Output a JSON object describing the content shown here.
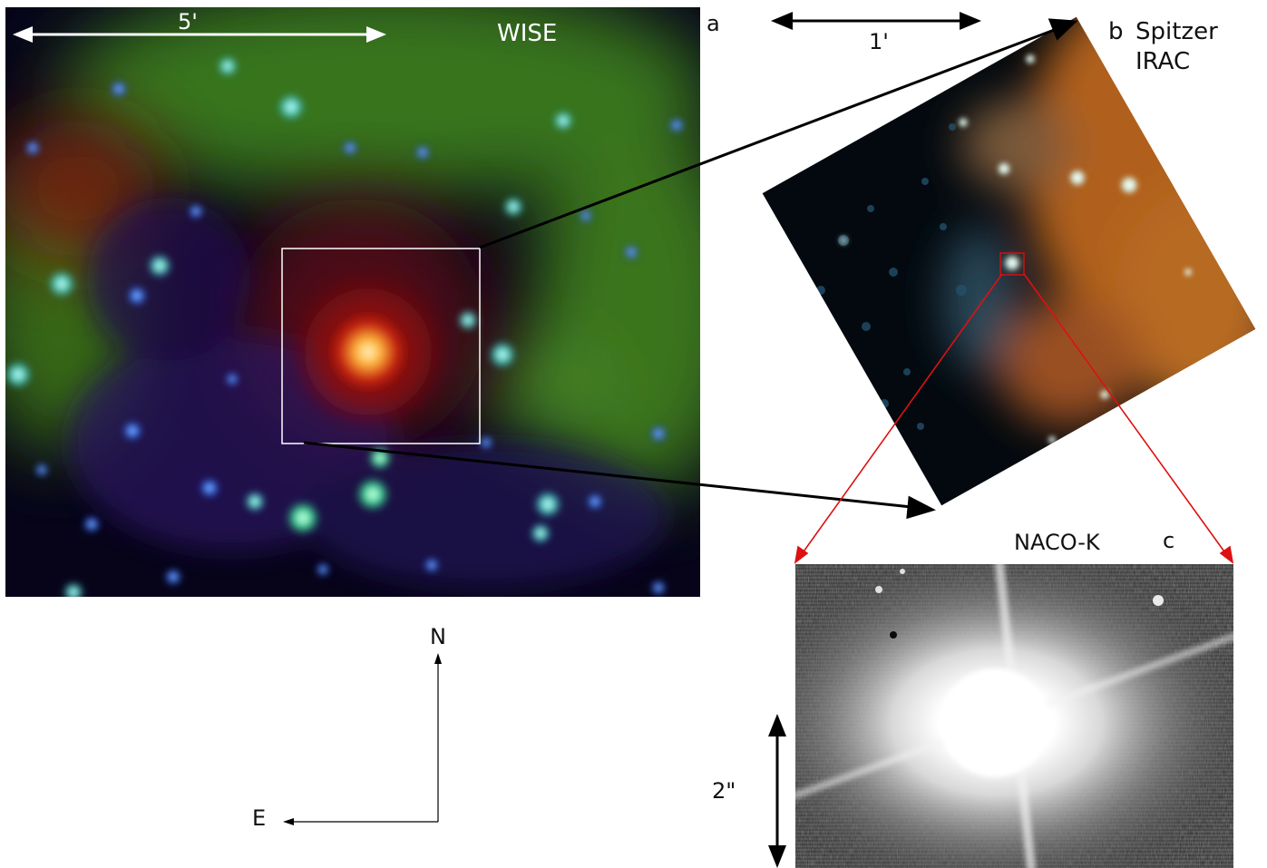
{
  "panel_a": {
    "survey": "WISE",
    "letter": "a",
    "scale_label": "5'"
  },
  "panel_b": {
    "letter": "b",
    "survey_line1": "Spitzer",
    "survey_line2": "IRAC",
    "scale_label": "1'"
  },
  "panel_c": {
    "survey": "NACO-K",
    "letter": "c",
    "scale_label": "2\""
  },
  "compass": {
    "north": "N",
    "east": "E"
  },
  "colors": {
    "zoom_box_a": "#ffffff",
    "zoom_box_b": "#cc1111",
    "connector_black": "#000000",
    "connector_red": "#dd1111"
  }
}
